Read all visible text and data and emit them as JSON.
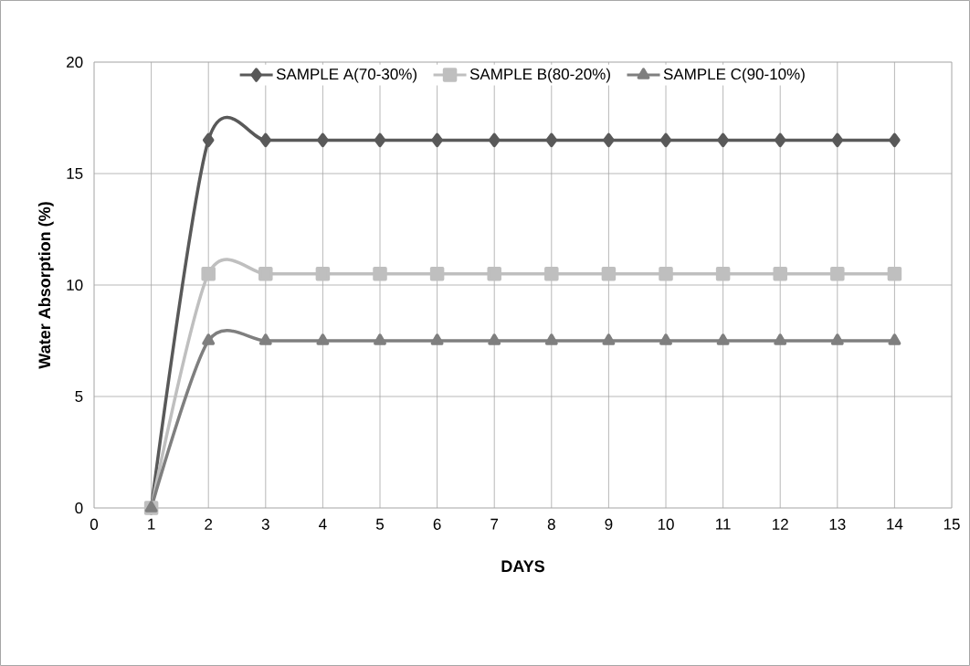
{
  "chart_data": {
    "type": "line",
    "xlabel": "DAYS",
    "ylabel": "Water Absorption (%)",
    "x": [
      1,
      2,
      3,
      4,
      5,
      6,
      7,
      8,
      9,
      10,
      11,
      12,
      13,
      14
    ],
    "series": [
      {
        "name": "SAMPLE A(70-30%)",
        "color": "#595959",
        "marker": "diamond",
        "values": [
          0,
          16.5,
          16.5,
          16.5,
          16.5,
          16.5,
          16.5,
          16.5,
          16.5,
          16.5,
          16.5,
          16.5,
          16.5,
          16.5
        ]
      },
      {
        "name": "SAMPLE B(80-20%)",
        "color": "#bfbfbf",
        "marker": "square",
        "values": [
          0,
          10.5,
          10.5,
          10.5,
          10.5,
          10.5,
          10.5,
          10.5,
          10.5,
          10.5,
          10.5,
          10.5,
          10.5,
          10.5
        ]
      },
      {
        "name": "SAMPLE C(90-10%)",
        "color": "#7f7f7f",
        "marker": "triangle",
        "values": [
          0,
          7.5,
          7.5,
          7.5,
          7.5,
          7.5,
          7.5,
          7.5,
          7.5,
          7.5,
          7.5,
          7.5,
          7.5,
          7.5
        ]
      }
    ],
    "xlim": [
      0,
      15
    ],
    "xticks": [
      0,
      1,
      2,
      3,
      4,
      5,
      6,
      7,
      8,
      9,
      10,
      11,
      12,
      13,
      14,
      15
    ],
    "ylim": [
      0,
      20
    ],
    "yticks": [
      0,
      5,
      10,
      15,
      20
    ],
    "grid": true,
    "legend": "top",
    "line_style": "solid"
  }
}
